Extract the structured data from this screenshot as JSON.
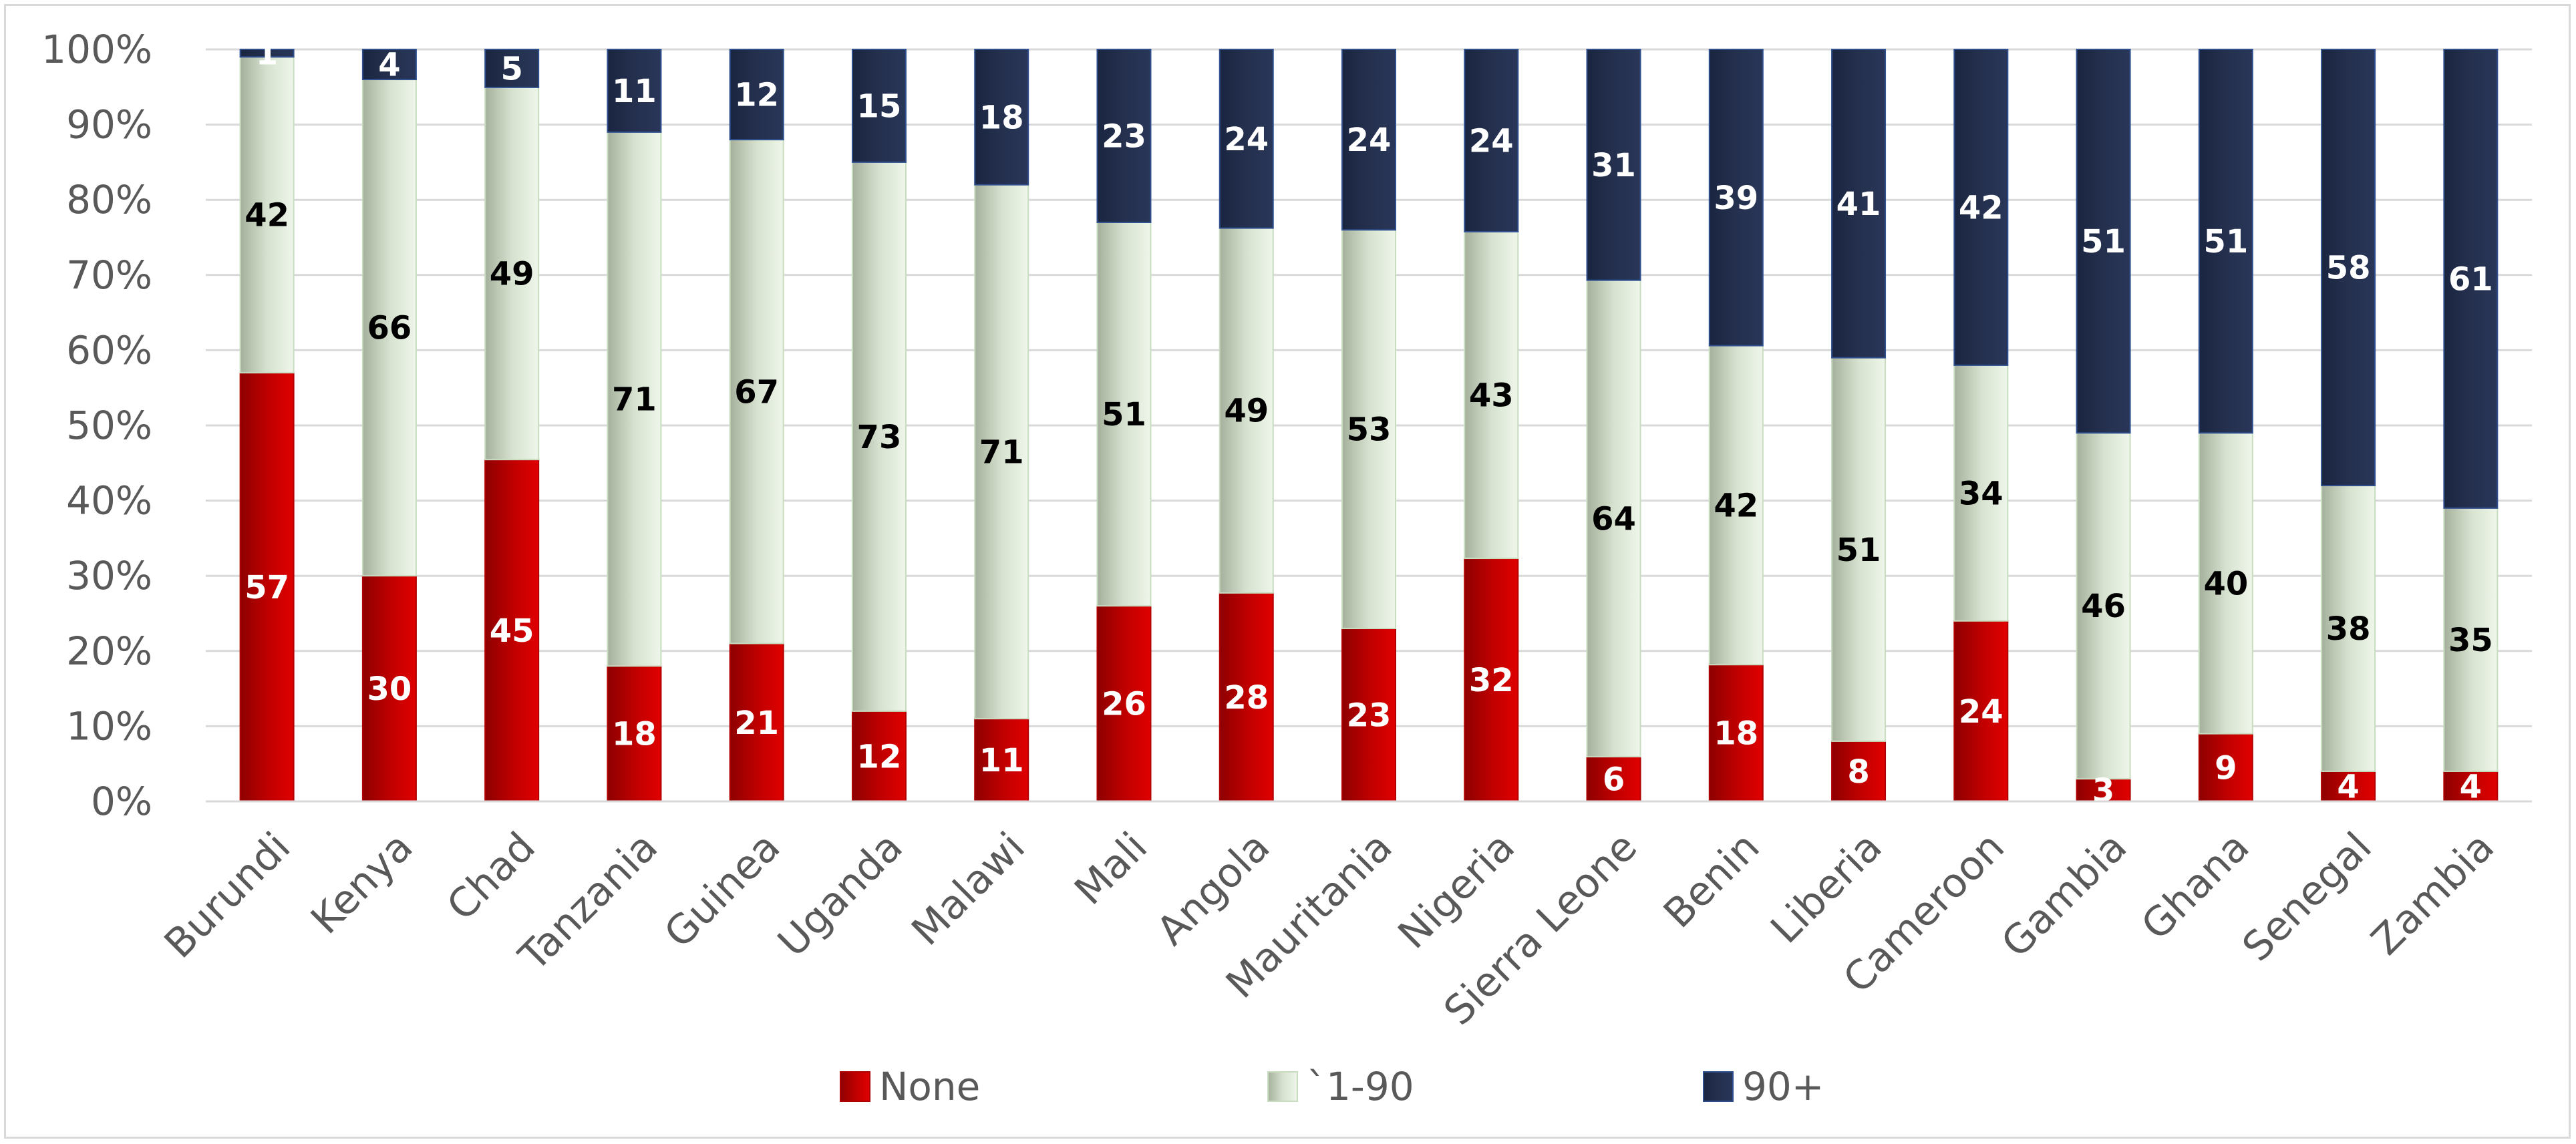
{
  "chart_data": {
    "type": "bar",
    "stacked": true,
    "percent_stacked": true,
    "title": "",
    "xlabel": "",
    "ylabel": "",
    "ylim": [
      0,
      100
    ],
    "yticks": [
      "0%",
      "10%",
      "20%",
      "30%",
      "40%",
      "50%",
      "60%",
      "70%",
      "80%",
      "90%",
      "100%"
    ],
    "grid": true,
    "legend_position": "bottom",
    "categories": [
      "Burundi",
      "Kenya",
      "Chad",
      "Tanzania",
      "Guinea",
      "Uganda",
      "Malawi",
      "Mali",
      "Angola",
      "Mauritania",
      "Nigeria",
      "Sierra Leone",
      "Benin",
      "Liberia",
      "Cameroon",
      "Gambia",
      "Ghana",
      "Senegal",
      "Zambia"
    ],
    "series": [
      {
        "name": "None",
        "color": "#c00000",
        "label_color": "#ffffff",
        "values": [
          57,
          30,
          45,
          18,
          21,
          12,
          11,
          26,
          28,
          23,
          32,
          6,
          18,
          8,
          24,
          3,
          9,
          4,
          4
        ]
      },
      {
        "name": "`1-90",
        "color": "#dce8d5",
        "label_color": "#000000",
        "values": [
          42,
          66,
          49,
          71,
          67,
          73,
          71,
          51,
          49,
          53,
          43,
          64,
          42,
          51,
          34,
          46,
          40,
          38,
          35
        ]
      },
      {
        "name": "90+",
        "color": "#1f2b45",
        "label_color": "#ffffff",
        "values": [
          1,
          4,
          5,
          11,
          12,
          15,
          18,
          23,
          24,
          24,
          24,
          31,
          39,
          41,
          42,
          51,
          51,
          58,
          61
        ]
      }
    ]
  }
}
